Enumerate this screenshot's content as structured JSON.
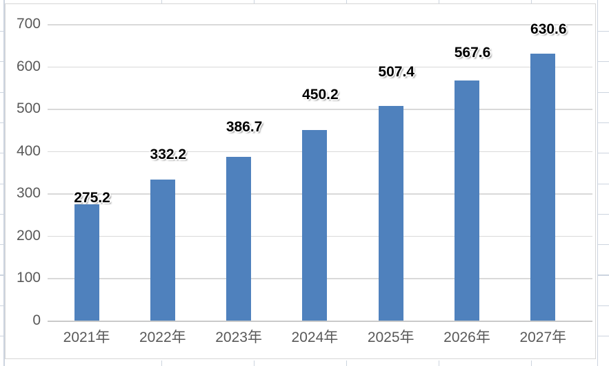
{
  "chart_data": {
    "type": "bar",
    "title": "",
    "categories": [
      "2021年",
      "2022年",
      "2023年",
      "2024年",
      "2025年",
      "2026年",
      "2027年"
    ],
    "values": [
      275.2,
      332.2,
      386.7,
      450.2,
      507.4,
      567.6,
      630.6
    ],
    "data_labels": [
      "275.2",
      "332.2",
      "386.7",
      "450.2",
      "507.4",
      "567.6",
      "630.6"
    ],
    "y_ticks": [
      700,
      600,
      500,
      400,
      300,
      200,
      100,
      0
    ],
    "ylim": [
      0,
      700
    ],
    "xlabel": "",
    "ylabel": "",
    "grid": true,
    "legend": false,
    "colors": {
      "bar_fill": "#4f81bd",
      "plot_gridline": "#d9d9d9",
      "axis_line": "#c9c9c9",
      "axis_text": "#595959",
      "data_label_text": "#000000",
      "chart_background": "#ffffff",
      "chart_border": "#d6d6d6",
      "sheet_gridline": "#ccd4df"
    }
  }
}
